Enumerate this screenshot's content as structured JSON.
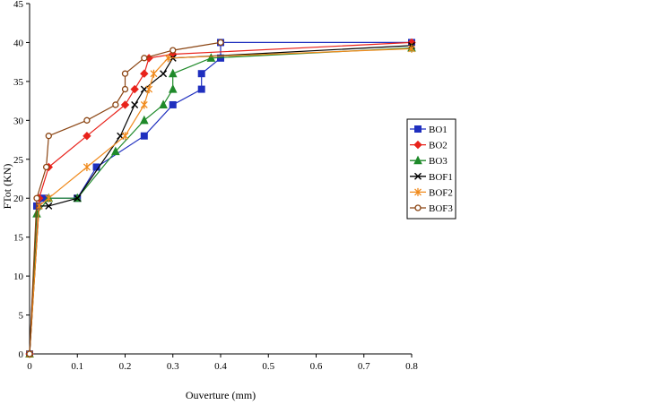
{
  "chart_data": {
    "type": "line",
    "xlabel": "Ouverture (mm)",
    "ylabel": "FTot (KN)",
    "xlim": [
      0,
      0.8
    ],
    "ylim": [
      0,
      45
    ],
    "xticks": [
      0,
      0.1,
      0.2,
      0.3,
      0.4,
      0.5,
      0.6,
      0.7,
      0.8
    ],
    "xtick_labels": [
      "0",
      "0.1",
      "0.2",
      "0.3",
      "0.4",
      "0.5",
      "0.6",
      "0.7",
      "0.8"
    ],
    "yticks": [
      0,
      5,
      10,
      15,
      20,
      25,
      30,
      35,
      40,
      45
    ],
    "ytick_labels": [
      "0",
      "5",
      "10",
      "15",
      "20",
      "25",
      "30",
      "35",
      "40",
      "45"
    ],
    "grid": false,
    "legend_position": "right",
    "series": [
      {
        "name": "BO1",
        "color": "#1f2fbf",
        "marker": "square",
        "x": [
          0,
          0.015,
          0.03,
          0.1,
          0.14,
          0.24,
          0.3,
          0.36,
          0.36,
          0.4,
          0.4,
          0.8
        ],
        "y": [
          0,
          19,
          20,
          20,
          24,
          28,
          32,
          34,
          36,
          38,
          40,
          40
        ]
      },
      {
        "name": "BO2",
        "color": "#e8221b",
        "marker": "diamond",
        "x": [
          0,
          0.02,
          0.04,
          0.12,
          0.2,
          0.22,
          0.24,
          0.25,
          0.3,
          0.8
        ],
        "y": [
          0,
          20,
          24,
          28,
          32,
          34,
          36,
          38,
          38.5,
          40
        ]
      },
      {
        "name": "BO3",
        "color": "#1f8a2a",
        "marker": "triangle",
        "x": [
          0,
          0.015,
          0.04,
          0.1,
          0.18,
          0.24,
          0.28,
          0.3,
          0.3,
          0.38,
          0.8
        ],
        "y": [
          0,
          18,
          20,
          20,
          26,
          30,
          32,
          34,
          36,
          38,
          39.3
        ]
      },
      {
        "name": "BOF1",
        "color": "#000000",
        "marker": "x",
        "x": [
          0,
          0.02,
          0.04,
          0.1,
          0.19,
          0.22,
          0.24,
          0.28,
          0.3,
          0.8
        ],
        "y": [
          0,
          19,
          19,
          20,
          28,
          32,
          34,
          36,
          38,
          39.6
        ]
      },
      {
        "name": "BOF2",
        "color": "#f08a1c",
        "marker": "asterisk",
        "x": [
          0,
          0.02,
          0.04,
          0.12,
          0.2,
          0.24,
          0.25,
          0.26,
          0.29,
          0.8
        ],
        "y": [
          0,
          19,
          20,
          24,
          28,
          32,
          34,
          36,
          38,
          39.2
        ]
      },
      {
        "name": "BOF3",
        "color": "#8b4513",
        "marker": "circle",
        "x": [
          0,
          0.015,
          0.035,
          0.04,
          0.12,
          0.18,
          0.2,
          0.2,
          0.24,
          0.3,
          0.4
        ],
        "y": [
          0,
          20,
          24,
          28,
          30,
          32,
          34,
          36,
          38,
          39,
          40
        ]
      }
    ]
  }
}
